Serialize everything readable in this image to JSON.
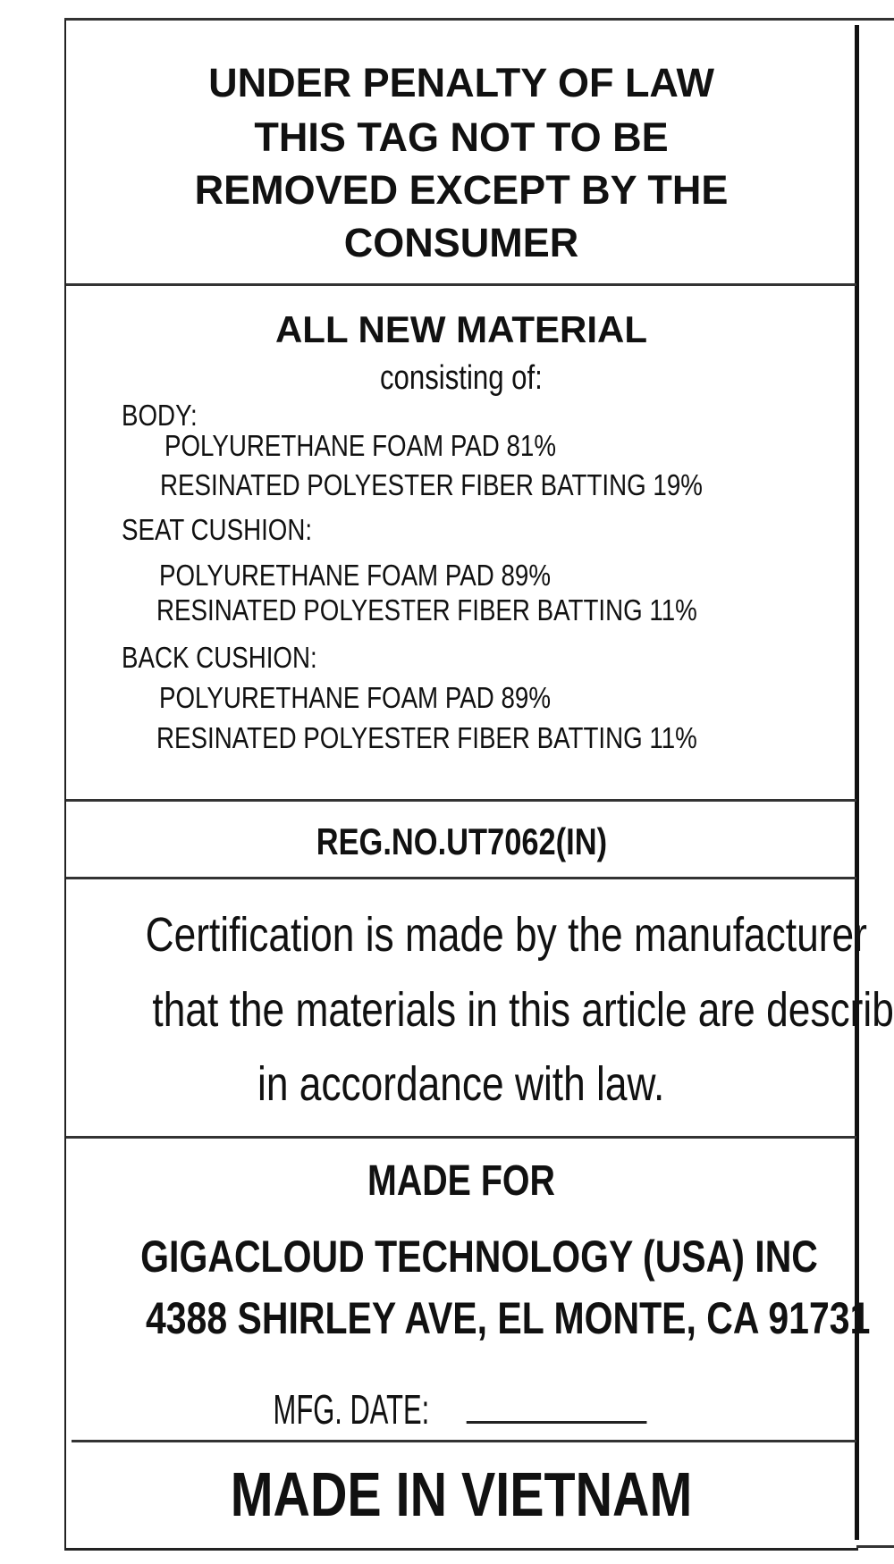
{
  "warning": {
    "lines": [
      "UNDER PENALTY OF LAW",
      "THIS TAG NOT TO BE",
      "REMOVED EXCEPT BY THE",
      "CONSUMER"
    ]
  },
  "materials": {
    "heading": "ALL NEW MATERIAL",
    "subheading": "consisting of:",
    "sections": [
      {
        "label": "BODY:",
        "items": [
          "POLYURETHANE FOAM PAD 81%",
          "RESINATED POLYESTER FIBER BATTING 19%"
        ]
      },
      {
        "label": "SEAT CUSHION:",
        "items": [
          "POLYURETHANE FOAM PAD 89%",
          "RESINATED POLYESTER FIBER BATTING 11%"
        ]
      },
      {
        "label": "BACK CUSHION:",
        "items": [
          "POLYURETHANE FOAM PAD 89%",
          "RESINATED POLYESTER FIBER BATTING 11%"
        ]
      }
    ]
  },
  "registration": "REG.NO.UT7062(IN)",
  "certification": {
    "lines": [
      "Certification is made by the manufacturer",
      "that the materials in this article are described",
      "in accordance with law."
    ]
  },
  "made_for": {
    "label": "MADE FOR",
    "company": "GIGACLOUD TECHNOLOGY (USA) INC",
    "address": "4388 SHIRLEY AVE, EL MONTE, CA 91731",
    "mfg_date_label": "MFG. DATE:",
    "mfg_date_value": ""
  },
  "origin": "MADE IN VIETNAM"
}
